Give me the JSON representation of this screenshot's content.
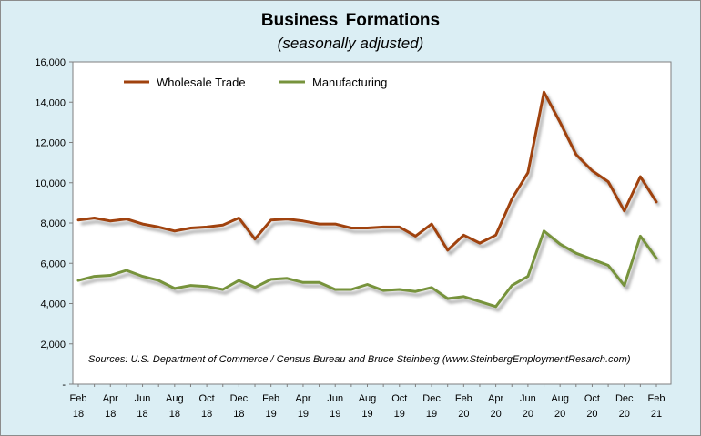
{
  "chart_data": {
    "type": "line",
    "title": "Business Formations",
    "subtitle": "(seasonally adjusted)",
    "source_note": "Sources: U.S. Department of Commerce / Census Bureau and Bruce Steinberg (www.SteinbergEmploymentResarch.com)",
    "legend_position": "top-left",
    "grid": false,
    "ylim": [
      0,
      16000
    ],
    "y_ticks": [
      "-",
      "2,000",
      "4,000",
      "6,000",
      "8,000",
      "10,000",
      "12,000",
      "14,000",
      "16,000"
    ],
    "x_tick_labels": [
      {
        "month": "Feb",
        "year": "18"
      },
      {
        "month": "Apr",
        "year": "18"
      },
      {
        "month": "Jun",
        "year": "18"
      },
      {
        "month": "Aug",
        "year": "18"
      },
      {
        "month": "Oct",
        "year": "18"
      },
      {
        "month": "Dec",
        "year": "18"
      },
      {
        "month": "Feb",
        "year": "19"
      },
      {
        "month": "Apr",
        "year": "19"
      },
      {
        "month": "Jun",
        "year": "19"
      },
      {
        "month": "Aug",
        "year": "19"
      },
      {
        "month": "Oct",
        "year": "19"
      },
      {
        "month": "Dec",
        "year": "19"
      },
      {
        "month": "Feb",
        "year": "20"
      },
      {
        "month": "Apr",
        "year": "20"
      },
      {
        "month": "Jun",
        "year": "20"
      },
      {
        "month": "Aug",
        "year": "20"
      },
      {
        "month": "Oct",
        "year": "20"
      },
      {
        "month": "Dec",
        "year": "20"
      },
      {
        "month": "Feb",
        "year": "21"
      }
    ],
    "x": [
      "Feb 18",
      "Mar 18",
      "Apr 18",
      "May 18",
      "Jun 18",
      "Jul 18",
      "Aug 18",
      "Sep 18",
      "Oct 18",
      "Nov 18",
      "Dec 18",
      "Jan 19",
      "Feb 19",
      "Mar 19",
      "Apr 19",
      "May 19",
      "Jun 19",
      "Jul 19",
      "Aug 19",
      "Sep 19",
      "Oct 19",
      "Nov 19",
      "Dec 19",
      "Jan 20",
      "Feb 20",
      "Mar 20",
      "Apr 20",
      "May 20",
      "Jun 20",
      "Jul 20",
      "Aug 20",
      "Sep 20",
      "Oct 20",
      "Nov 20",
      "Dec 20",
      "Jan 21",
      "Feb 21"
    ],
    "series": [
      {
        "name": "Wholesale Trade",
        "color": "#a0420e",
        "values": [
          8150,
          8250,
          8100,
          8200,
          7950,
          7800,
          7600,
          7750,
          7800,
          7900,
          8250,
          7200,
          8150,
          8200,
          8100,
          7950,
          7950,
          7750,
          7750,
          7800,
          7800,
          7350,
          7950,
          6650,
          7400,
          7000,
          7400,
          9200,
          10500,
          14500,
          13000,
          11400,
          10600,
          10050,
          8600,
          10300,
          9050
        ]
      },
      {
        "name": "Manufacturing",
        "color": "#77933c",
        "values": [
          5150,
          5350,
          5400,
          5650,
          5350,
          5150,
          4750,
          4900,
          4850,
          4700,
          5150,
          4800,
          5200,
          5250,
          5050,
          5050,
          4700,
          4700,
          4950,
          4650,
          4700,
          4600,
          4800,
          4250,
          4350,
          4100,
          3850,
          4900,
          5350,
          7600,
          6950,
          6500,
          6200,
          5900,
          4900,
          7350,
          6250
        ]
      }
    ]
  }
}
